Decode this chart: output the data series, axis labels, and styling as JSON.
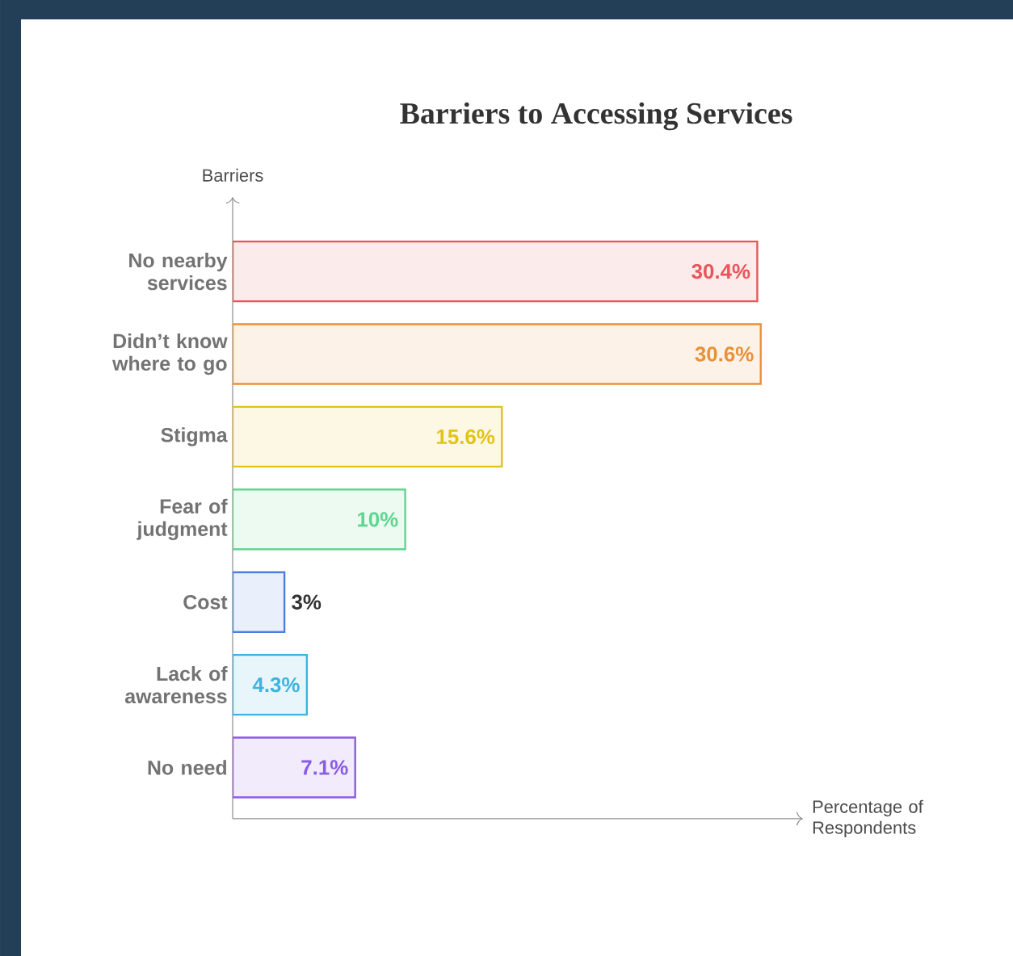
{
  "chart_data": {
    "type": "bar",
    "orientation": "horizontal",
    "title": "Barriers to Accessing Services",
    "xlabel": "Percentage of Respondents",
    "ylabel": "Barriers",
    "categories": [
      "No nearby services",
      "Didn’t know where to go",
      "Stigma",
      "Fear of judgment",
      "Cost",
      "Lack of awareness",
      "No need"
    ],
    "values": [
      30.4,
      30.6,
      15.6,
      10,
      3,
      4.3,
      7.1
    ],
    "value_labels": [
      "30.4%",
      "30.6%",
      "15.6%",
      "10%",
      "3%",
      "4.3%",
      "7.1%"
    ],
    "colors": [
      "#e8555a",
      "#e8913a",
      "#e3c21a",
      "#5fd68f",
      "#4c7fe0",
      "#3eb3e0",
      "#8a5ce6"
    ]
  }
}
